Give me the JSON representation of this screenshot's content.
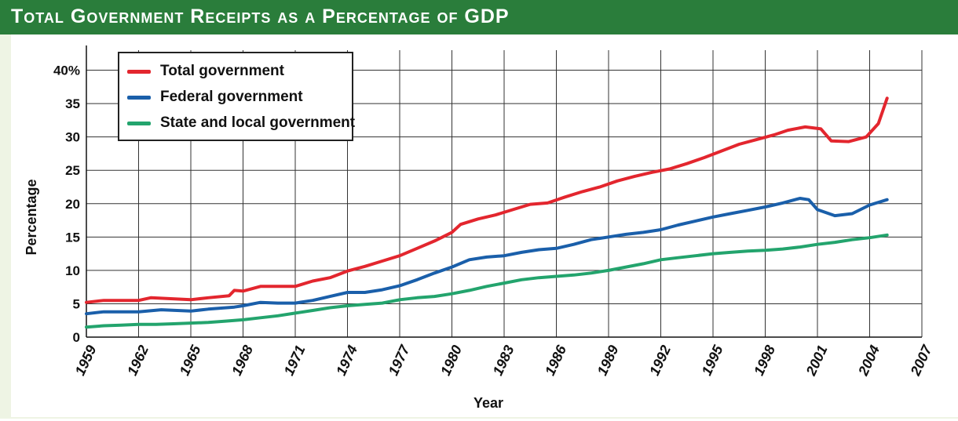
{
  "header": {
    "title": "Total Government Receipts as a Percentage of GDP"
  },
  "chart_data": {
    "type": "line",
    "title": "Total Government Receipts as a Percentage of GDP",
    "xlabel": "Year",
    "ylabel": "Percentage",
    "xlim": [
      1959,
      2007
    ],
    "ylim": [
      0,
      43
    ],
    "x_ticks": [
      1959,
      1962,
      1965,
      1968,
      1971,
      1974,
      1977,
      1980,
      1983,
      1986,
      1989,
      1992,
      1995,
      1998,
      2001,
      2004,
      2007
    ],
    "y_ticks": [
      0,
      5,
      10,
      15,
      20,
      25,
      30,
      35,
      40
    ],
    "y_tick_labels": [
      "0",
      "5",
      "10",
      "15",
      "20",
      "25",
      "30",
      "35",
      "40%"
    ],
    "grid": true,
    "legend_position": "top-left",
    "series": [
      {
        "name": "Total government",
        "color": "#e3262e",
        "points": [
          [
            1959,
            5.2
          ],
          [
            1960,
            5.5
          ],
          [
            1961,
            5.5
          ],
          [
            1962,
            5.5
          ],
          [
            1962.7,
            5.9
          ],
          [
            1963.5,
            5.8
          ],
          [
            1965,
            5.6
          ],
          [
            1966,
            5.9
          ],
          [
            1967.2,
            6.2
          ],
          [
            1967.5,
            7.0
          ],
          [
            1968,
            6.9
          ],
          [
            1969,
            7.6
          ],
          [
            1970,
            7.6
          ],
          [
            1971,
            7.6
          ],
          [
            1972,
            8.4
          ],
          [
            1973,
            8.9
          ],
          [
            1974,
            9.9
          ],
          [
            1975,
            10.6
          ],
          [
            1976,
            11.4
          ],
          [
            1977,
            12.2
          ],
          [
            1978,
            13.3
          ],
          [
            1979,
            14.4
          ],
          [
            1980,
            15.7
          ],
          [
            1980.5,
            16.9
          ],
          [
            1981.5,
            17.7
          ],
          [
            1982.5,
            18.3
          ],
          [
            1983.5,
            19.1
          ],
          [
            1984.5,
            19.9
          ],
          [
            1985.5,
            20.1
          ],
          [
            1986.5,
            21.0
          ],
          [
            1987.5,
            21.8
          ],
          [
            1988.5,
            22.5
          ],
          [
            1989.5,
            23.4
          ],
          [
            1990.5,
            24.1
          ],
          [
            1991.5,
            24.7
          ],
          [
            1992.5,
            25.2
          ],
          [
            1993.5,
            26.0
          ],
          [
            1994.5,
            26.9
          ],
          [
            1995.5,
            27.9
          ],
          [
            1996.5,
            28.9
          ],
          [
            1997.5,
            29.6
          ],
          [
            1998.5,
            30.3
          ],
          [
            1999.3,
            31.0
          ],
          [
            2000.3,
            31.5
          ],
          [
            2001.2,
            31.2
          ],
          [
            2001.8,
            29.4
          ],
          [
            2002.8,
            29.3
          ],
          [
            2003.8,
            30.0
          ],
          [
            2004.5,
            32.0
          ],
          [
            2005.0,
            35.8
          ]
        ]
      },
      {
        "name": "Federal government",
        "color": "#1a5faa",
        "points": [
          [
            1959,
            3.5
          ],
          [
            1960,
            3.8
          ],
          [
            1961,
            3.8
          ],
          [
            1962,
            3.8
          ],
          [
            1963.3,
            4.1
          ],
          [
            1965,
            3.9
          ],
          [
            1966,
            4.2
          ],
          [
            1967.5,
            4.5
          ],
          [
            1968,
            4.7
          ],
          [
            1969,
            5.2
          ],
          [
            1970,
            5.1
          ],
          [
            1971,
            5.1
          ],
          [
            1972,
            5.5
          ],
          [
            1973,
            6.1
          ],
          [
            1974,
            6.7
          ],
          [
            1975,
            6.7
          ],
          [
            1976,
            7.1
          ],
          [
            1977,
            7.7
          ],
          [
            1978,
            8.6
          ],
          [
            1979,
            9.6
          ],
          [
            1980,
            10.5
          ],
          [
            1981,
            11.6
          ],
          [
            1982,
            12.0
          ],
          [
            1983,
            12.2
          ],
          [
            1984,
            12.7
          ],
          [
            1985,
            13.1
          ],
          [
            1986,
            13.3
          ],
          [
            1987,
            13.9
          ],
          [
            1988,
            14.6
          ],
          [
            1989,
            15.0
          ],
          [
            1990,
            15.4
          ],
          [
            1991,
            15.7
          ],
          [
            1992,
            16.1
          ],
          [
            1993,
            16.8
          ],
          [
            1994,
            17.4
          ],
          [
            1995,
            18.0
          ],
          [
            1996,
            18.5
          ],
          [
            1997,
            19.0
          ],
          [
            1998,
            19.5
          ],
          [
            1999,
            20.1
          ],
          [
            2000,
            20.8
          ],
          [
            2000.5,
            20.6
          ],
          [
            2001,
            19.1
          ],
          [
            2002,
            18.2
          ],
          [
            2003,
            18.5
          ],
          [
            2004,
            19.8
          ],
          [
            2005.0,
            20.6
          ]
        ]
      },
      {
        "name": "State and local government",
        "color": "#23a46d",
        "points": [
          [
            1959,
            1.5
          ],
          [
            1960,
            1.7
          ],
          [
            1961,
            1.8
          ],
          [
            1962,
            1.9
          ],
          [
            1963,
            1.9
          ],
          [
            1964,
            2.0
          ],
          [
            1965,
            2.1
          ],
          [
            1966,
            2.2
          ],
          [
            1967,
            2.4
          ],
          [
            1968,
            2.6
          ],
          [
            1969,
            2.9
          ],
          [
            1970,
            3.2
          ],
          [
            1971,
            3.6
          ],
          [
            1972,
            4.0
          ],
          [
            1973,
            4.4
          ],
          [
            1974,
            4.7
          ],
          [
            1975,
            4.9
          ],
          [
            1976,
            5.1
          ],
          [
            1977,
            5.6
          ],
          [
            1978,
            5.9
          ],
          [
            1979,
            6.1
          ],
          [
            1980,
            6.5
          ],
          [
            1981,
            7.0
          ],
          [
            1982,
            7.6
          ],
          [
            1983,
            8.1
          ],
          [
            1984,
            8.6
          ],
          [
            1985,
            8.9
          ],
          [
            1986,
            9.1
          ],
          [
            1987,
            9.3
          ],
          [
            1988,
            9.6
          ],
          [
            1989,
            10.0
          ],
          [
            1990,
            10.5
          ],
          [
            1991,
            11.0
          ],
          [
            1992,
            11.6
          ],
          [
            1993,
            11.9
          ],
          [
            1994,
            12.2
          ],
          [
            1995,
            12.5
          ],
          [
            1996,
            12.7
          ],
          [
            1997,
            12.9
          ],
          [
            1998,
            13.0
          ],
          [
            1999,
            13.2
          ],
          [
            2000,
            13.5
          ],
          [
            2001,
            13.9
          ],
          [
            2002,
            14.2
          ],
          [
            2003,
            14.6
          ],
          [
            2004,
            14.9
          ],
          [
            2005.0,
            15.3
          ]
        ]
      }
    ]
  }
}
